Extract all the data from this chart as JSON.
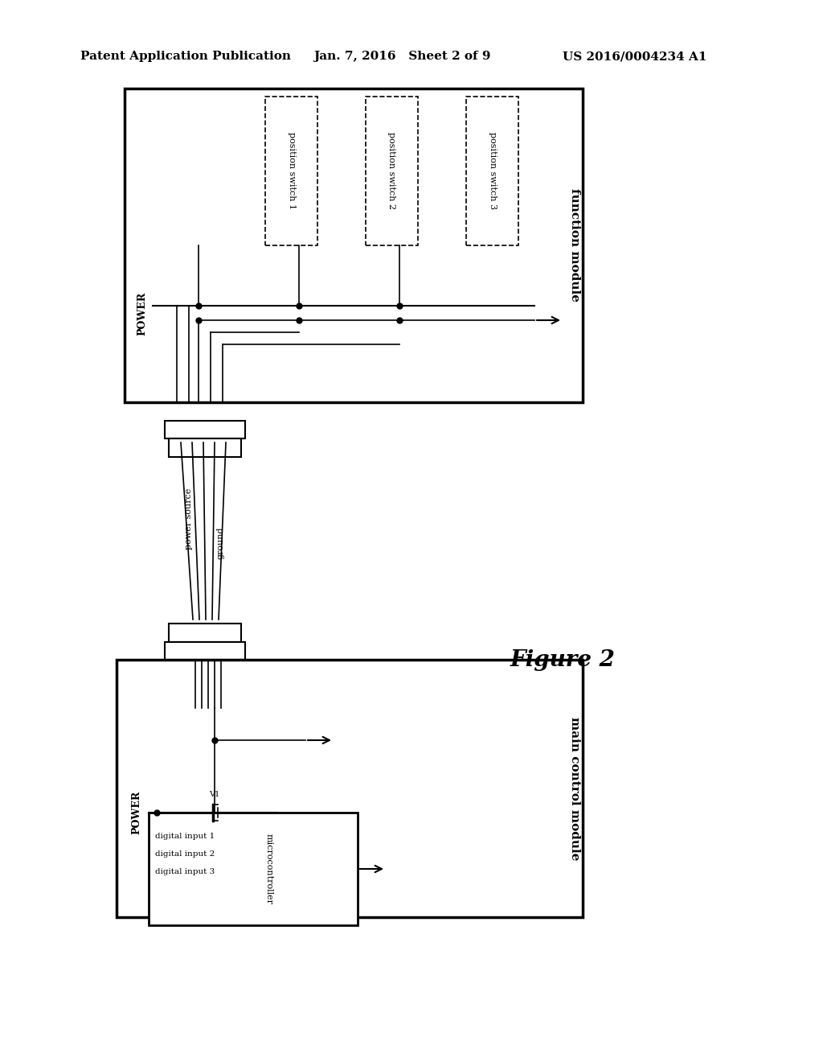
{
  "bg_color": "#ffffff",
  "header_left": "Patent Application Publication",
  "header_mid": "Jan. 7, 2016   Sheet 2 of 9",
  "header_right": "US 2016/0004234 A1",
  "figure_label": "Figure 2",
  "top_module_label": "function module",
  "bottom_module_label": "main control module",
  "pos_switches": [
    "position switch 1",
    "position switch 2",
    "position switch 3"
  ],
  "power_label_top": "POWER",
  "power_label_bottom": "POWER",
  "power_source_label": "power source",
  "ground_label": "ground",
  "digital_inputs": [
    "digital input 1",
    "digital input 2",
    "digital input 3"
  ],
  "microcontroller_label": "microcontroller"
}
